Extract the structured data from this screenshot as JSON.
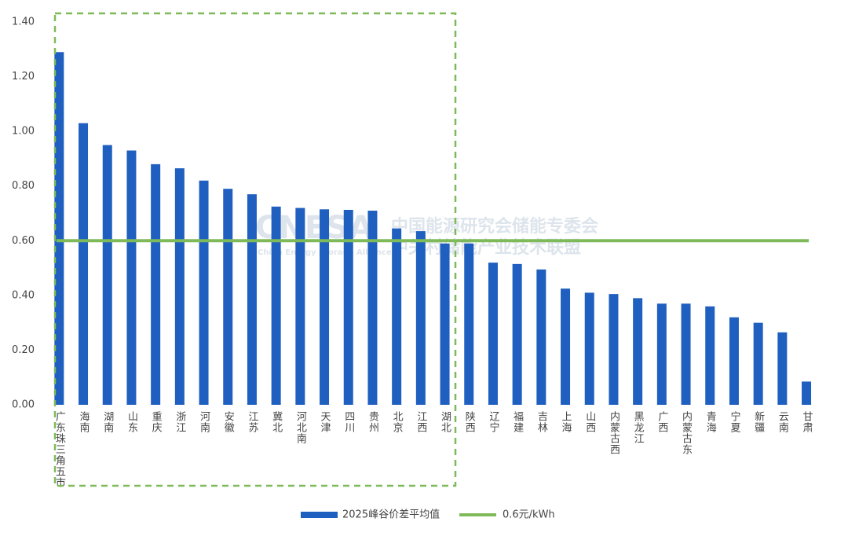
{
  "chart_data": {
    "type": "bar",
    "categories": [
      "广东珠三角五市",
      "海南",
      "湖南",
      "山东",
      "重庆",
      "浙江",
      "河南",
      "安徽",
      "江苏",
      "冀北",
      "河北南",
      "天津",
      "四川",
      "贵州",
      "北京",
      "江西",
      "湖北",
      "陕西",
      "辽宁",
      "福建",
      "吉林",
      "上海",
      "山西",
      "内蒙古西",
      "黑龙江",
      "广西",
      "内蒙古东",
      "青海",
      "宁夏",
      "新疆",
      "云南",
      "甘肃"
    ],
    "series": [
      {
        "name": "2025峰谷价差平均值",
        "color": "#1f5fbf",
        "values": [
          1.29,
          1.03,
          0.95,
          0.93,
          0.88,
          0.865,
          0.82,
          0.79,
          0.77,
          0.725,
          0.72,
          0.715,
          0.713,
          0.71,
          0.645,
          0.635,
          0.59,
          0.59,
          0.52,
          0.515,
          0.495,
          0.425,
          0.41,
          0.405,
          0.39,
          0.37,
          0.37,
          0.36,
          0.32,
          0.3,
          0.265,
          0.085
        ]
      }
    ],
    "reference_line": {
      "name": "0.6元/kWh",
      "value": 0.6,
      "color": "#7fba5a"
    },
    "ylim": [
      0,
      1.4
    ],
    "yticks": [
      {
        "value": 0,
        "label": "0.00"
      },
      {
        "value": 0.2,
        "label": "0.20"
      },
      {
        "value": 0.4,
        "label": "0.40"
      },
      {
        "value": 0.6,
        "label": "0.60"
      },
      {
        "value": 0.8,
        "label": "0.80"
      },
      {
        "value": 1.0,
        "label": "1.00"
      },
      {
        "value": 1.2,
        "label": "1.20"
      },
      {
        "value": 1.4,
        "label": "1.40"
      }
    ],
    "highlight_box_color": "#7fba5a",
    "watermark": [
      "CNESA",
      "中国能源研究会储能专委会",
      "China Energy Storage Alliance",
      "中关村储能产业技术联盟"
    ]
  }
}
